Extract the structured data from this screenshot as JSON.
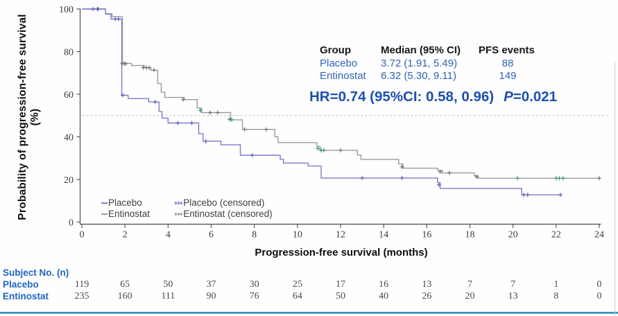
{
  "colors": {
    "placebo_line": "#7b7bc8",
    "placebo_censor": "#5c5cbe",
    "entinostat_line": "#9b9b9f",
    "entinostat_censor_dark": "#6e6e72",
    "entinostat_censor_teal": "#3c8e7c",
    "annotation_blue": "#2f63b8",
    "hr_blue": "#1c4fb0",
    "risk_label_blue": "#1f64c2",
    "axis": "#4a4a4a",
    "dashed_line": "#bcbcbc"
  },
  "y_axis": {
    "title": "Probability of progression-free survival (%)"
  },
  "x_axis": {
    "title": "Progression-free survival (months)"
  },
  "annotation": {
    "headers": {
      "group": "Group",
      "median": "Median (95% CI)",
      "events": "PFS events"
    },
    "rows": [
      {
        "group": "Placebo",
        "median": "3.72 (1.91, 5.49)",
        "events": "88"
      },
      {
        "group": "Entinostat",
        "median": "6.32 (5.30, 9.11)",
        "events": "149"
      }
    ],
    "hr_text": "HR=0.74 (95%CI: 0.58, 0.96)",
    "p_italic": "P",
    "p_rest": "=0.021"
  },
  "legend": {
    "items": [
      {
        "label": "Placebo",
        "marker": "line",
        "color": "#7b7bc8"
      },
      {
        "label": "Entinostat",
        "marker": "line",
        "color": "#9b9b9f"
      },
      {
        "label": "Placebo (censored)",
        "marker": "censored",
        "color": "#5c5cbe"
      },
      {
        "label": "Entinostat (censored)",
        "marker": "censored",
        "color": "#82828a"
      }
    ]
  },
  "risk_table": {
    "title": "Subject No. (n)",
    "time_points": [
      0,
      2,
      4,
      6,
      8,
      10,
      12,
      14,
      16,
      18,
      20,
      22,
      24
    ],
    "rows": [
      {
        "label": "Placebo",
        "values": [
          119,
          65,
          50,
          37,
          30,
          25,
          17,
          16,
          13,
          7,
          7,
          1,
          0
        ]
      },
      {
        "label": "Entinostat",
        "values": [
          235,
          160,
          111,
          90,
          76,
          64,
          50,
          40,
          26,
          20,
          13,
          8,
          0
        ]
      }
    ]
  },
  "chart_data": {
    "type": "line",
    "subtype": "kaplan-meier-step",
    "title": "",
    "xlabel": "Progression-free survival (months)",
    "ylabel": "Probability of progression-free survival (%)",
    "xlim": [
      0,
      24
    ],
    "ylim": [
      0,
      100
    ],
    "x_ticks": [
      0,
      2,
      4,
      6,
      8,
      10,
      12,
      14,
      16,
      18,
      20,
      22,
      24
    ],
    "y_ticks": [
      0,
      20,
      40,
      60,
      80,
      100
    ],
    "reference_line_y": 50,
    "grid": false,
    "legend_position": "inside bottom-left",
    "series": [
      {
        "name": "Entinostat",
        "median": 6.32,
        "median_ci": [
          5.3,
          9.11
        ],
        "pfs_events": 149,
        "n": 235,
        "end_month": 24.05,
        "steps": [
          [
            0,
            100
          ],
          [
            1.1,
            97.8
          ],
          [
            1.4,
            96.4
          ],
          [
            1.88,
            74.5
          ],
          [
            2.3,
            73.5
          ],
          [
            2.9,
            72.5
          ],
          [
            3.2,
            71.3
          ],
          [
            3.52,
            65.0
          ],
          [
            3.68,
            60.9
          ],
          [
            3.85,
            58.5
          ],
          [
            4.75,
            57.5
          ],
          [
            5.35,
            53.5
          ],
          [
            5.55,
            51.4
          ],
          [
            6.9,
            48.0
          ],
          [
            7.45,
            43.5
          ],
          [
            8.95,
            40.0
          ],
          [
            9.1,
            37.3
          ],
          [
            10.9,
            35.5
          ],
          [
            11.05,
            33.7
          ],
          [
            12.78,
            31.5
          ],
          [
            12.95,
            29.4
          ],
          [
            14.7,
            27.3
          ],
          [
            14.9,
            25.3
          ],
          [
            16.5,
            24.3
          ],
          [
            16.72,
            23.1
          ],
          [
            18.2,
            21.8
          ],
          [
            18.38,
            20.6
          ]
        ],
        "censored": [
          [
            0.72,
            100,
            "t"
          ],
          [
            1.88,
            74.5,
            "d"
          ],
          [
            1.96,
            74.4,
            "d"
          ],
          [
            2.03,
            74.3,
            "d"
          ],
          [
            2.85,
            72.5,
            "d"
          ],
          [
            3.0,
            72.5,
            "d"
          ],
          [
            3.12,
            72.5,
            "d"
          ],
          [
            3.35,
            71.3,
            "d"
          ],
          [
            4.7,
            57.5,
            "d"
          ],
          [
            5.5,
            52.4,
            "t"
          ],
          [
            5.95,
            51.4,
            "d"
          ],
          [
            6.3,
            51.4,
            "d"
          ],
          [
            6.85,
            48.2,
            "t"
          ],
          [
            6.95,
            48.0,
            "t"
          ],
          [
            7.55,
            43.5,
            "d"
          ],
          [
            8.55,
            43.5,
            "d"
          ],
          [
            10.95,
            34.6,
            "t"
          ],
          [
            11.1,
            33.7,
            "t"
          ],
          [
            11.22,
            33.7,
            "t"
          ],
          [
            12.0,
            33.7,
            "d"
          ],
          [
            14.85,
            25.9,
            "d"
          ],
          [
            16.62,
            23.6,
            "d"
          ],
          [
            17.05,
            23.1,
            "d"
          ],
          [
            18.32,
            21.2,
            "d"
          ],
          [
            20.2,
            20.6,
            "t"
          ],
          [
            22.0,
            20.6,
            "t"
          ],
          [
            22.15,
            20.6,
            "t"
          ],
          [
            22.32,
            20.6,
            "t"
          ],
          [
            24.0,
            20.6,
            "d"
          ]
        ]
      },
      {
        "name": "Placebo",
        "median": 3.72,
        "median_ci": [
          1.91,
          5.49
        ],
        "pfs_events": 88,
        "n": 119,
        "end_month": 22.2,
        "steps": [
          [
            0,
            100
          ],
          [
            1.1,
            97.6
          ],
          [
            1.35,
            95.3
          ],
          [
            1.85,
            59.5
          ],
          [
            2.15,
            58.0
          ],
          [
            3.1,
            56.4
          ],
          [
            3.58,
            51.9
          ],
          [
            3.72,
            48.8
          ],
          [
            4.0,
            46.5
          ],
          [
            5.42,
            41.5
          ],
          [
            5.62,
            38.0
          ],
          [
            6.45,
            36.3
          ],
          [
            7.35,
            31.4
          ],
          [
            9.2,
            29.5
          ],
          [
            9.35,
            27.7
          ],
          [
            10.5,
            26.3
          ],
          [
            11.1,
            20.7
          ],
          [
            16.5,
            18.5
          ],
          [
            16.62,
            15.8
          ],
          [
            20.4,
            12.8
          ]
        ],
        "censored": [
          [
            0.52,
            100,
            "p"
          ],
          [
            0.75,
            100,
            "p"
          ],
          [
            1.55,
            95.3,
            "p"
          ],
          [
            1.7,
            95.3,
            "p"
          ],
          [
            1.9,
            59.5,
            "p"
          ],
          [
            3.4,
            56.4,
            "p"
          ],
          [
            4.45,
            46.5,
            "p"
          ],
          [
            5.1,
            46.5,
            "p"
          ],
          [
            5.75,
            38.0,
            "p"
          ],
          [
            7.9,
            31.4,
            "p"
          ],
          [
            13.0,
            20.7,
            "p"
          ],
          [
            14.85,
            20.7,
            "p"
          ],
          [
            16.56,
            17.5,
            "p"
          ],
          [
            20.5,
            12.8,
            "p"
          ],
          [
            20.68,
            12.8,
            "p"
          ],
          [
            22.2,
            12.8,
            "p"
          ]
        ]
      }
    ],
    "at_risk": {
      "label": "Subject No. (n)",
      "times": [
        0,
        2,
        4,
        6,
        8,
        10,
        12,
        14,
        16,
        18,
        20,
        22,
        24
      ],
      "Placebo": [
        119,
        65,
        50,
        37,
        30,
        25,
        17,
        16,
        13,
        7,
        7,
        1,
        0
      ],
      "Entinostat": [
        235,
        160,
        111,
        90,
        76,
        64,
        50,
        40,
        26,
        20,
        13,
        8,
        0
      ]
    }
  }
}
